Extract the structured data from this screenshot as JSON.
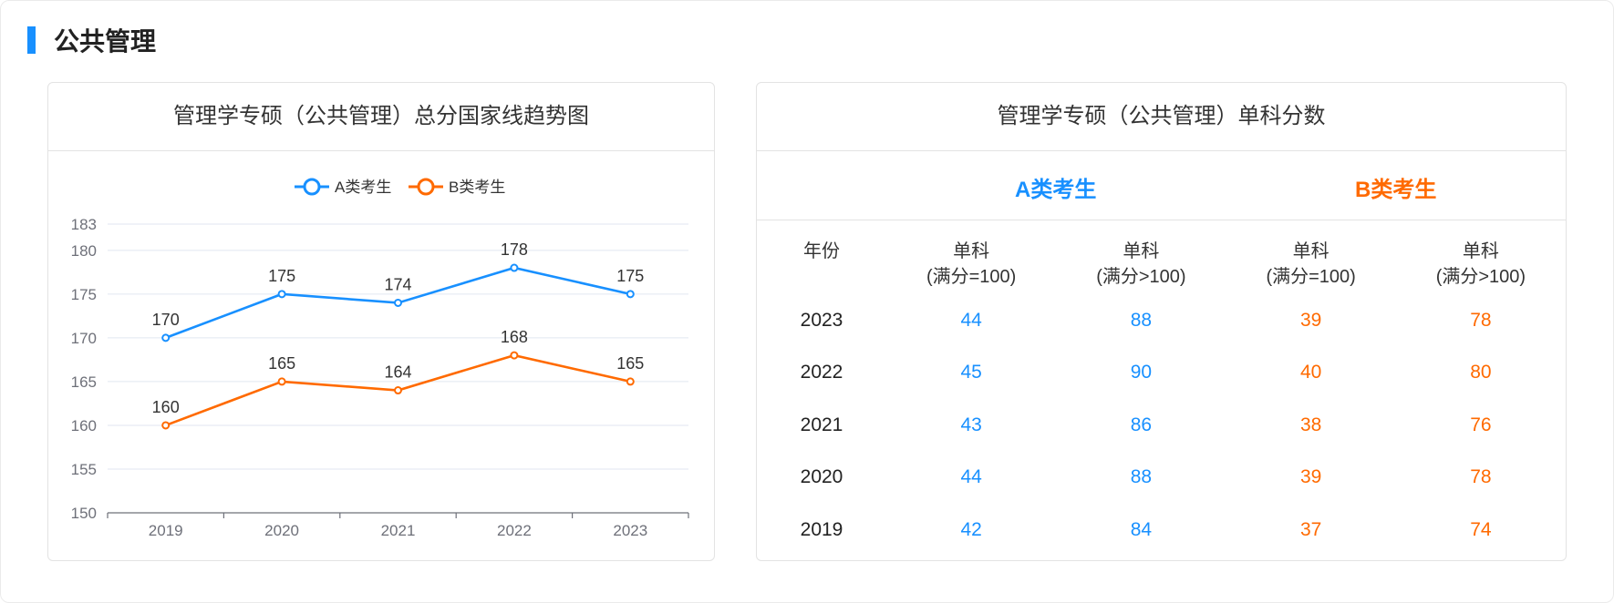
{
  "section": {
    "title": "公共管理"
  },
  "left_card": {
    "title": "管理学专硕（公共管理）总分国家线趋势图"
  },
  "right_card": {
    "title": "管理学专硕（公共管理）单科分数",
    "category_a": "A类考生",
    "category_b": "B类考生",
    "headers": {
      "year": "年份",
      "single": "单科",
      "full100": "(满分=100)",
      "fullgt100": "(满分>100)"
    },
    "rows": [
      {
        "year": "2023",
        "a100": "44",
        "agt100": "88",
        "b100": "39",
        "bgt100": "78"
      },
      {
        "year": "2022",
        "a100": "45",
        "agt100": "90",
        "b100": "40",
        "bgt100": "80"
      },
      {
        "year": "2021",
        "a100": "43",
        "agt100": "86",
        "b100": "38",
        "bgt100": "76"
      },
      {
        "year": "2020",
        "a100": "44",
        "agt100": "88",
        "b100": "39",
        "bgt100": "78"
      },
      {
        "year": "2019",
        "a100": "42",
        "agt100": "84",
        "b100": "37",
        "bgt100": "74"
      }
    ]
  },
  "colors": {
    "accent": "#1890ff",
    "series_a": "#1890ff",
    "series_b": "#ff6a00"
  },
  "chart_data": {
    "type": "line",
    "title": "管理学专硕（公共管理）总分国家线趋势图",
    "categories": [
      "2019",
      "2020",
      "2021",
      "2022",
      "2023"
    ],
    "yticks": [
      "150",
      "155",
      "160",
      "165",
      "170",
      "175",
      "180",
      "183"
    ],
    "ylim": [
      150,
      183
    ],
    "grid": true,
    "legend": "top-center",
    "series": [
      {
        "name": "A类考生",
        "values": [
          170,
          175,
          174,
          178,
          175
        ],
        "color": "#1890ff"
      },
      {
        "name": "B类考生",
        "values": [
          160,
          165,
          164,
          168,
          165
        ],
        "color": "#ff6a00"
      }
    ]
  }
}
